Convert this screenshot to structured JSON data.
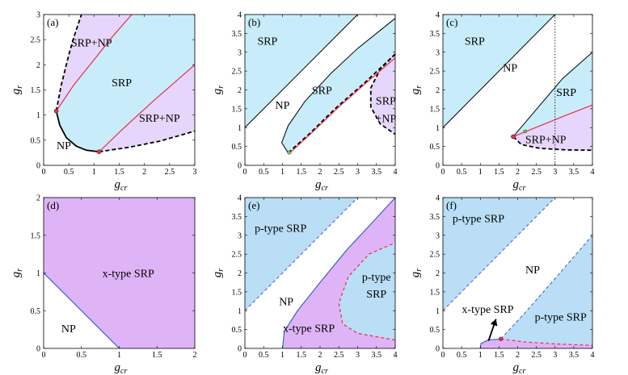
{
  "figure": {
    "xlabel": "g",
    "xlabel_sub": "cr",
    "ylabel": "g",
    "ylabel_sub": "r"
  },
  "colors": {
    "blue_region": "#c8ecfa",
    "purple_region": "#e7d6fb",
    "blue_region_dark": "#b9def5",
    "purple_region_dark": "#dfb4f6",
    "red_line": "#e8304a",
    "blue_line": "#3a5fd0",
    "black": "#000000"
  },
  "panels": [
    {
      "id": "a",
      "label": "(a)",
      "xlim": [
        0,
        3
      ],
      "ylim": [
        0,
        3
      ],
      "xticks": [
        "0",
        "0.5",
        "1",
        "1.5",
        "2",
        "2.5",
        "3"
      ],
      "yticks": [
        "0",
        "0.5",
        "1",
        "1.5",
        "2",
        "2.5",
        "3"
      ],
      "regions": [
        {
          "text": "SRP+NP",
          "x": 0.95,
          "y": 2.45
        },
        {
          "text": "SRP",
          "x": 1.55,
          "y": 1.65
        },
        {
          "text": "SRP+NP",
          "x": 2.3,
          "y": 0.95
        },
        {
          "text": "NP",
          "x": 0.4,
          "y": 0.4
        }
      ]
    },
    {
      "id": "b",
      "label": "(b)",
      "xlim": [
        0,
        4
      ],
      "ylim": [
        0,
        4
      ],
      "xticks": [
        "0",
        "0.5",
        "1",
        "1.5",
        "2",
        "2.5",
        "3",
        "3.5",
        "4"
      ],
      "yticks": [
        "0",
        "0.5",
        "1",
        "1.5",
        "2",
        "2.5",
        "3",
        "3.5",
        "4"
      ],
      "regions": [
        {
          "text": "SRP",
          "x": 0.6,
          "y": 3.3
        },
        {
          "text": "NP",
          "x": 1.0,
          "y": 1.6
        },
        {
          "text": "SRP",
          "x": 2.05,
          "y": 2.0
        },
        {
          "text": "SRP",
          "x": 3.75,
          "y": 1.72
        },
        {
          "text": "+NP",
          "x": 3.75,
          "y": 1.25
        }
      ]
    },
    {
      "id": "c",
      "label": "(c)",
      "xlim": [
        0,
        4
      ],
      "ylim": [
        0,
        4
      ],
      "xticks": [
        "0",
        "0.5",
        "1",
        "1.5",
        "2",
        "2.5",
        "3",
        "3.5",
        "4"
      ],
      "yticks": [
        "0",
        "0.5",
        "1",
        "1.5",
        "2",
        "2.5",
        "3",
        "3.5",
        "4"
      ],
      "regions": [
        {
          "text": "SRP",
          "x": 0.85,
          "y": 3.3
        },
        {
          "text": "NP",
          "x": 1.8,
          "y": 2.6
        },
        {
          "text": "SRP",
          "x": 3.3,
          "y": 1.95
        },
        {
          "text": "SRP+NP",
          "x": 2.75,
          "y": 0.7
        }
      ]
    },
    {
      "id": "d",
      "label": "(d)",
      "xlim": [
        0,
        2
      ],
      "ylim": [
        0,
        2
      ],
      "xticks": [
        "0",
        "0.5",
        "1",
        "1.5",
        "2"
      ],
      "yticks": [
        "0",
        "0.5",
        "1",
        "1.5",
        "2"
      ],
      "regions": [
        {
          "text": "x-type SRP",
          "x": 1.12,
          "y": 1.0
        },
        {
          "text": "NP",
          "x": 0.33,
          "y": 0.27
        }
      ]
    },
    {
      "id": "e",
      "label": "(e)",
      "xlim": [
        0,
        4
      ],
      "ylim": [
        0,
        4
      ],
      "xticks": [
        "0",
        "0.5",
        "1",
        "1.5",
        "2",
        "2.5",
        "3",
        "3.5",
        "4"
      ],
      "yticks": [
        "0",
        "0.5",
        "1",
        "1.5",
        "2",
        "2.5",
        "3",
        "3.5",
        "4"
      ],
      "regions": [
        {
          "text": "p-type SRP",
          "x": 0.95,
          "y": 3.2
        },
        {
          "text": "NP",
          "x": 1.1,
          "y": 1.25
        },
        {
          "text": "x-type SRP",
          "x": 1.7,
          "y": 0.55
        },
        {
          "text": "p-type",
          "x": 3.5,
          "y": 1.9
        },
        {
          "text": "SRP",
          "x": 3.5,
          "y": 1.45
        }
      ]
    },
    {
      "id": "f",
      "label": "(f)",
      "xlim": [
        0,
        4
      ],
      "ylim": [
        0,
        4
      ],
      "xticks": [
        "0",
        "0.5",
        "1",
        "1.5",
        "2",
        "2.5",
        "3",
        "3.5",
        "4"
      ],
      "yticks": [
        "0",
        "0.5",
        "1",
        "1.5",
        "2",
        "2.5",
        "3",
        "3.5",
        "4"
      ],
      "regions": [
        {
          "text": "p-type SRP",
          "x": 0.95,
          "y": 3.45
        },
        {
          "text": "NP",
          "x": 2.4,
          "y": 2.1
        },
        {
          "text": "x-type SRP",
          "x": 1.2,
          "y": 1.05
        },
        {
          "text": "p-type SRP",
          "x": 3.15,
          "y": 0.85
        }
      ]
    }
  ]
}
